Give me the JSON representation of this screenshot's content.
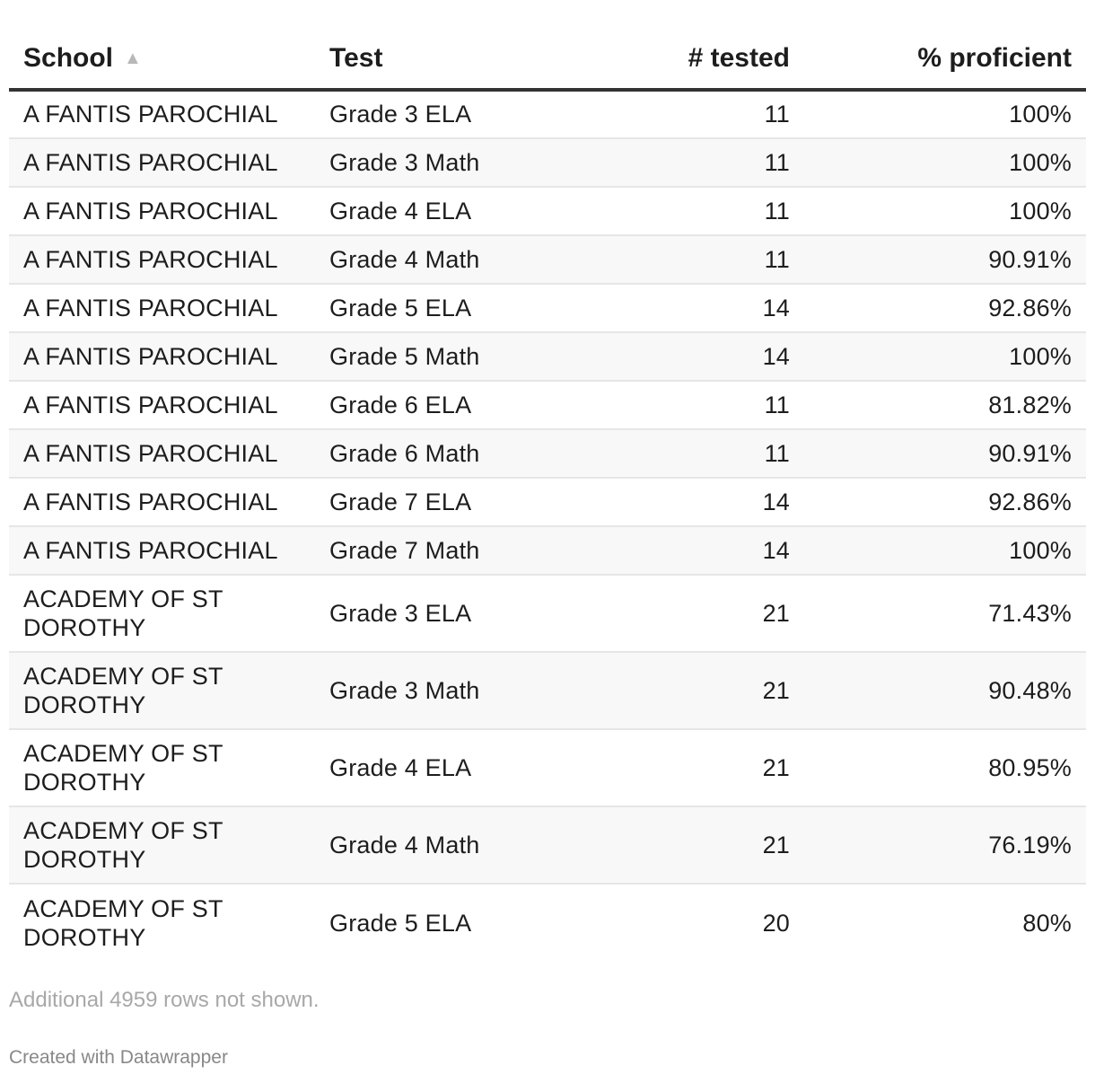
{
  "chart_data": {
    "type": "table",
    "columns": [
      "School",
      "Test",
      "# tested",
      "% proficient"
    ],
    "sorted_by": "School",
    "sort_direction": "ascending",
    "rows": [
      {
        "school": "A FANTIS PAROCHIAL",
        "test": "Grade 3 ELA",
        "tested": "11",
        "proficient": "100%"
      },
      {
        "school": "A FANTIS PAROCHIAL",
        "test": "Grade 3 Math",
        "tested": "11",
        "proficient": "100%"
      },
      {
        "school": "A FANTIS PAROCHIAL",
        "test": "Grade 4 ELA",
        "tested": "11",
        "proficient": "100%"
      },
      {
        "school": "A FANTIS PAROCHIAL",
        "test": "Grade 4 Math",
        "tested": "11",
        "proficient": "90.91%"
      },
      {
        "school": "A FANTIS PAROCHIAL",
        "test": "Grade 5 ELA",
        "tested": "14",
        "proficient": "92.86%"
      },
      {
        "school": "A FANTIS PAROCHIAL",
        "test": "Grade 5 Math",
        "tested": "14",
        "proficient": "100%"
      },
      {
        "school": "A FANTIS PAROCHIAL",
        "test": "Grade 6 ELA",
        "tested": "11",
        "proficient": "81.82%"
      },
      {
        "school": "A FANTIS PAROCHIAL",
        "test": "Grade 6 Math",
        "tested": "11",
        "proficient": "90.91%"
      },
      {
        "school": "A FANTIS PAROCHIAL",
        "test": "Grade 7 ELA",
        "tested": "14",
        "proficient": "92.86%"
      },
      {
        "school": "A FANTIS PAROCHIAL",
        "test": "Grade 7 Math",
        "tested": "14",
        "proficient": "100%"
      },
      {
        "school": "ACADEMY OF ST DOROTHY",
        "test": "Grade 3 ELA",
        "tested": "21",
        "proficient": "71.43%"
      },
      {
        "school": "ACADEMY OF ST DOROTHY",
        "test": "Grade 3 Math",
        "tested": "21",
        "proficient": "90.48%"
      },
      {
        "school": "ACADEMY OF ST DOROTHY",
        "test": "Grade 4 ELA",
        "tested": "21",
        "proficient": "80.95%"
      },
      {
        "school": "ACADEMY OF ST DOROTHY",
        "test": "Grade 4 Math",
        "tested": "21",
        "proficient": "76.19%"
      },
      {
        "school": "ACADEMY OF ST DOROTHY",
        "test": "Grade 5 ELA",
        "tested": "20",
        "proficient": "80%"
      }
    ]
  },
  "header": {
    "school": "School",
    "test": "Test",
    "tested": "# tested",
    "proficient": "% proficient",
    "sort_icon": "sort-ascending-icon"
  },
  "footer": {
    "note": "Additional 4959 rows not shown.",
    "credit": "Created with Datawrapper"
  }
}
